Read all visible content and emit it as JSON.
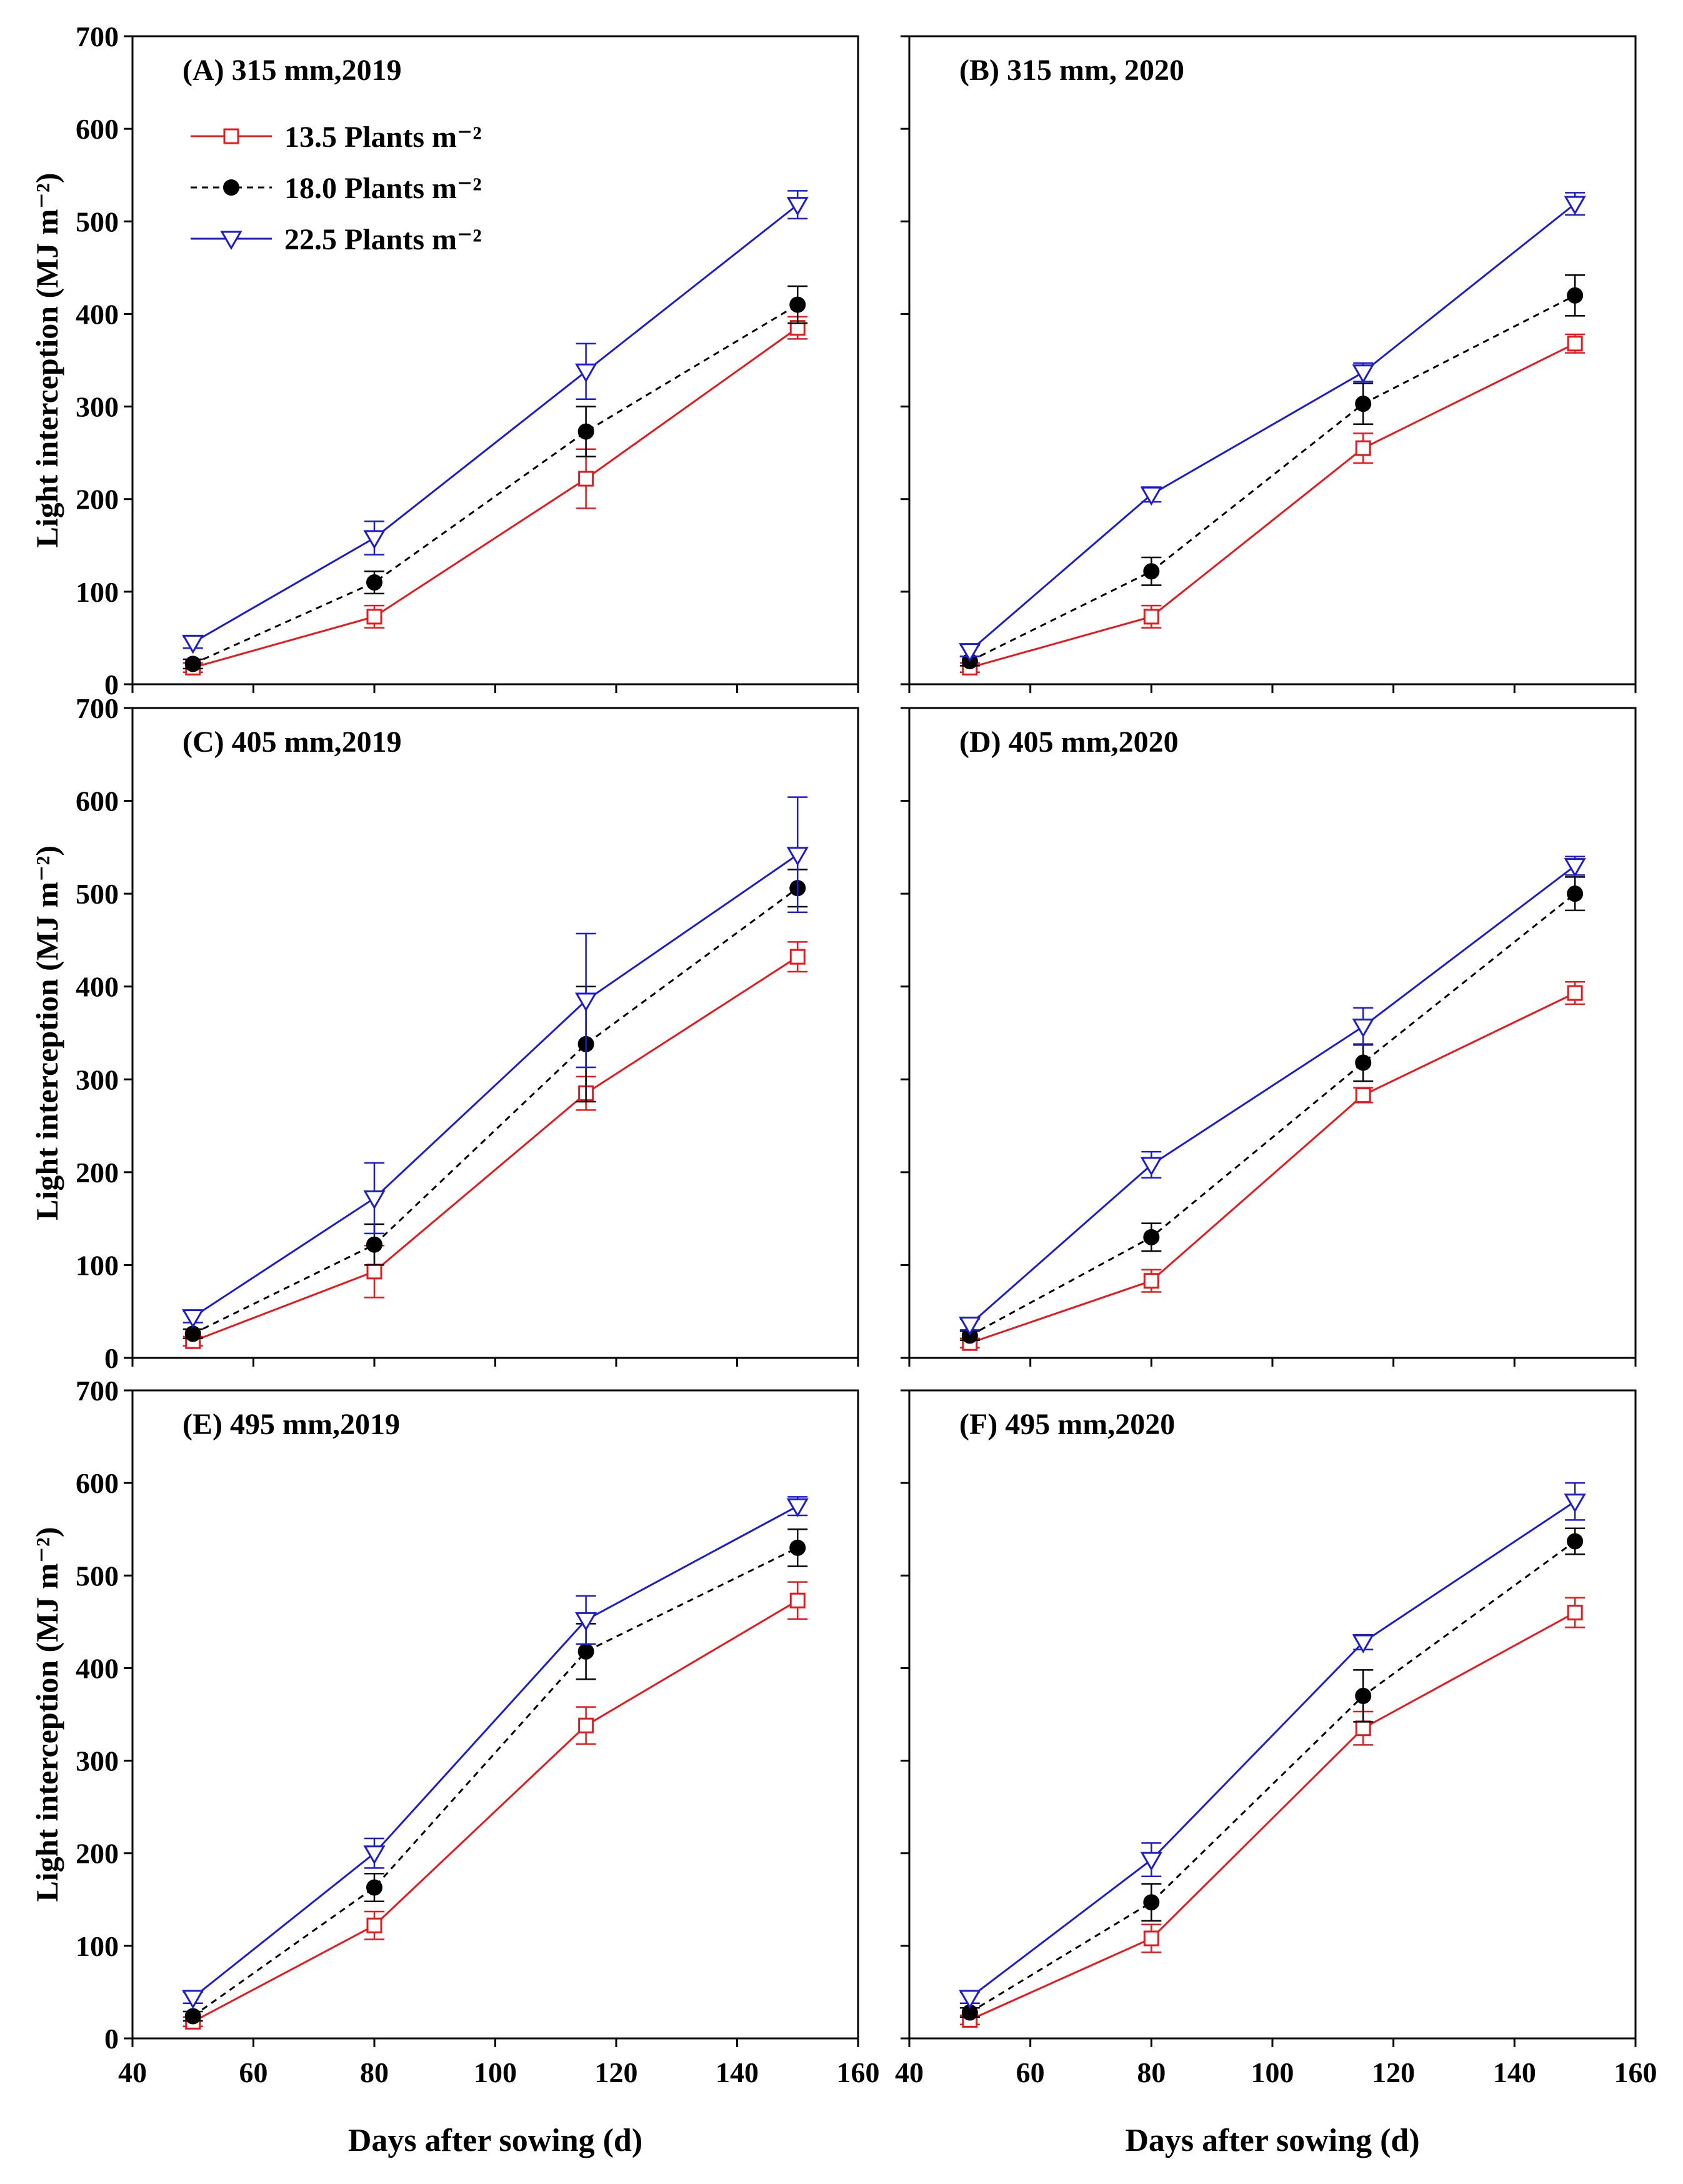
{
  "figure": {
    "y_axis_label": "Light interception (MJ m⁻²)",
    "x_axis_label": "Days after sowing (d)"
  },
  "legend": [
    {
      "label": "13.5 Plants m⁻²",
      "color": "#e8191c",
      "marker": "open-square",
      "dash": "solid"
    },
    {
      "label": "18.0 Plants m⁻²",
      "color": "#000000",
      "marker": "filled-circle",
      "dash": "dashed"
    },
    {
      "label": "22.5 Plants m⁻²",
      "color": "#1c1cd6",
      "marker": "open-triangle-down",
      "dash": "solid"
    }
  ],
  "chart_data": [
    {
      "type": "line",
      "title": "(A) 315 mm,2019",
      "x": [
        50,
        80,
        115,
        150
      ],
      "xlim": [
        40,
        160
      ],
      "xticks": [
        40,
        60,
        80,
        100,
        120,
        140,
        160
      ],
      "ylim": [
        0,
        700
      ],
      "yticks": [
        0,
        100,
        200,
        300,
        400,
        500,
        600,
        700
      ],
      "xlabel": "",
      "ylabel": "Light interception (MJ m⁻²)",
      "series": [
        {
          "name": "13.5 Plants m⁻²",
          "values": [
            18,
            73,
            222,
            385
          ],
          "errors": [
            5,
            12,
            32,
            12
          ]
        },
        {
          "name": "18.0 Plants m⁻²",
          "values": [
            22,
            110,
            273,
            410
          ],
          "errors": [
            5,
            12,
            27,
            20
          ]
        },
        {
          "name": "22.5 Plants m⁻²",
          "values": [
            45,
            158,
            338,
            518
          ],
          "errors": [
            6,
            18,
            30,
            15
          ]
        }
      ]
    },
    {
      "type": "line",
      "title": "(B) 315 mm, 2020",
      "x": [
        50,
        80,
        115,
        150
      ],
      "xlim": [
        40,
        160
      ],
      "xticks": [
        40,
        60,
        80,
        100,
        120,
        140,
        160
      ],
      "ylim": [
        0,
        700
      ],
      "yticks": [
        0,
        100,
        200,
        300,
        400,
        500,
        600,
        700
      ],
      "xlabel": "",
      "ylabel": "",
      "series": [
        {
          "name": "13.5 Plants m⁻²",
          "values": [
            18,
            73,
            255,
            368
          ],
          "errors": [
            5,
            12,
            16,
            10
          ]
        },
        {
          "name": "18.0 Plants m⁻²",
          "values": [
            25,
            122,
            303,
            420
          ],
          "errors": [
            5,
            15,
            22,
            22
          ]
        },
        {
          "name": "22.5 Plants m⁻²",
          "values": [
            36,
            205,
            337,
            519
          ],
          "errors": [
            6,
            8,
            10,
            12
          ]
        }
      ]
    },
    {
      "type": "line",
      "title": "(C) 405 mm,2019",
      "x": [
        50,
        80,
        115,
        150
      ],
      "xlim": [
        40,
        160
      ],
      "xticks": [
        40,
        60,
        80,
        100,
        120,
        140,
        160
      ],
      "ylim": [
        0,
        700
      ],
      "yticks": [
        0,
        100,
        200,
        300,
        400,
        500,
        600,
        700
      ],
      "xlabel": "",
      "ylabel": "Light interception (MJ m⁻²)",
      "series": [
        {
          "name": "13.5 Plants m⁻²",
          "values": [
            18,
            93,
            285,
            432
          ],
          "errors": [
            5,
            28,
            18,
            16
          ]
        },
        {
          "name": "18.0 Plants m⁻²",
          "values": [
            26,
            122,
            338,
            506
          ],
          "errors": [
            5,
            22,
            62,
            20
          ]
        },
        {
          "name": "22.5 Plants m⁻²",
          "values": [
            44,
            172,
            385,
            542
          ],
          "errors": [
            6,
            38,
            72,
            62
          ]
        }
      ]
    },
    {
      "type": "line",
      "title": "(D) 405 mm,2020",
      "x": [
        50,
        80,
        115,
        150
      ],
      "xlim": [
        40,
        160
      ],
      "xticks": [
        40,
        60,
        80,
        100,
        120,
        140,
        160
      ],
      "ylim": [
        0,
        700
      ],
      "yticks": [
        0,
        100,
        200,
        300,
        400,
        500,
        600,
        700
      ],
      "xlabel": "",
      "ylabel": "",
      "series": [
        {
          "name": "13.5 Plants m⁻²",
          "values": [
            16,
            83,
            283,
            393
          ],
          "errors": [
            5,
            12,
            8,
            12
          ]
        },
        {
          "name": "18.0 Plants m⁻²",
          "values": [
            24,
            130,
            318,
            500
          ],
          "errors": [
            5,
            15,
            20,
            18
          ]
        },
        {
          "name": "22.5 Plants m⁻²",
          "values": [
            36,
            208,
            357,
            530
          ],
          "errors": [
            6,
            14,
            20,
            10
          ]
        }
      ]
    },
    {
      "type": "line",
      "title": "(E) 495 mm,2019",
      "x": [
        50,
        80,
        115,
        150
      ],
      "xlim": [
        40,
        160
      ],
      "xticks": [
        40,
        60,
        80,
        100,
        120,
        140,
        160
      ],
      "ylim": [
        0,
        700
      ],
      "yticks": [
        0,
        100,
        200,
        300,
        400,
        500,
        600,
        700
      ],
      "xlabel": "Days after sowing (d)",
      "ylabel": "Light interception (MJ m⁻²)",
      "series": [
        {
          "name": "13.5 Plants m⁻²",
          "values": [
            18,
            122,
            338,
            473
          ],
          "errors": [
            5,
            15,
            20,
            20
          ]
        },
        {
          "name": "18.0 Plants m⁻²",
          "values": [
            24,
            163,
            418,
            530
          ],
          "errors": [
            5,
            15,
            30,
            20
          ]
        },
        {
          "name": "22.5 Plants m⁻²",
          "values": [
            44,
            200,
            452,
            575
          ],
          "errors": [
            6,
            16,
            26,
            10
          ]
        }
      ]
    },
    {
      "type": "line",
      "title": "(F) 495 mm,2020",
      "x": [
        50,
        80,
        115,
        150
      ],
      "xlim": [
        40,
        160
      ],
      "xticks": [
        40,
        60,
        80,
        100,
        120,
        140,
        160
      ],
      "ylim": [
        0,
        700
      ],
      "yticks": [
        0,
        100,
        200,
        300,
        400,
        500,
        600,
        700
      ],
      "xlabel": "Days after sowing (d)",
      "ylabel": "",
      "series": [
        {
          "name": "13.5 Plants m⁻²",
          "values": [
            20,
            108,
            335,
            460
          ],
          "errors": [
            5,
            15,
            18,
            16
          ]
        },
        {
          "name": "18.0 Plants m⁻²",
          "values": [
            28,
            147,
            370,
            537
          ],
          "errors": [
            5,
            20,
            28,
            14
          ]
        },
        {
          "name": "22.5 Plants m⁻²",
          "values": [
            44,
            193,
            428,
            580
          ],
          "errors": [
            6,
            18,
            8,
            20
          ]
        }
      ]
    }
  ]
}
